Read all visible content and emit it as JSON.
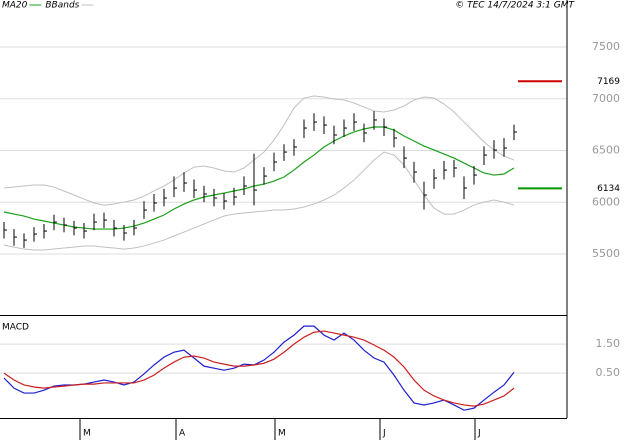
{
  "source": "© TEC 14/7/2024 3:1 GMT",
  "chart_data": [
    {
      "type": "ohlc",
      "high": [
        5810,
        5740,
        5700,
        5760,
        5790,
        5880,
        5850,
        5820,
        5800,
        5890,
        5900,
        5830,
        5780,
        5830,
        6010,
        6080,
        6130,
        6250,
        6290,
        6220,
        6160,
        6130,
        6090,
        6140,
        6250,
        6470,
        6340,
        6480,
        6560,
        6610,
        6800,
        6860,
        6830,
        6740,
        6800,
        6860,
        6760,
        6880,
        6810,
        6710,
        6540,
        6390,
        6200,
        6320,
        6400,
        6410,
        6250,
        6350,
        6540,
        6600,
        6620,
        6750
      ],
      "low": [
        5650,
        5580,
        5560,
        5620,
        5650,
        5730,
        5710,
        5680,
        5650,
        5730,
        5750,
        5670,
        5630,
        5680,
        5840,
        5910,
        5960,
        6050,
        6100,
        6040,
        6000,
        5960,
        5930,
        5970,
        6070,
        5970,
        6170,
        6300,
        6400,
        6450,
        6620,
        6690,
        6660,
        6560,
        6630,
        6690,
        6580,
        6700,
        6640,
        6530,
        6330,
        6190,
        5930,
        6130,
        6220,
        6240,
        6030,
        6170,
        6360,
        6420,
        6440,
        6600
      ],
      "close": [
        5732,
        5664,
        5635,
        5693,
        5722,
        5809,
        5780,
        5751,
        5722,
        5809,
        5828,
        5751,
        5703,
        5751,
        5925,
        5993,
        6041,
        6137,
        6186,
        6118,
        6080,
        6041,
        6012,
        6051,
        6157,
        6118,
        6253,
        6389,
        6485,
        6534,
        6717,
        6775,
        6746,
        6650,
        6717,
        6775,
        6669,
        6795,
        6727,
        6621,
        6427,
        6292,
        6070,
        6234,
        6311,
        6331,
        6138,
        6263,
        6456,
        6505,
        6524,
        6679
      ],
      "bar_color": "#000000",
      "series": [
        {
          "name": "MA20",
          "color": "#1aa01a",
          "values": [
            5906,
            5886,
            5867,
            5838,
            5819,
            5799,
            5780,
            5761,
            5751,
            5741,
            5741,
            5741,
            5751,
            5770,
            5799,
            5838,
            5877,
            5935,
            5983,
            6022,
            6051,
            6070,
            6089,
            6109,
            6128,
            6157,
            6176,
            6205,
            6244,
            6311,
            6389,
            6456,
            6534,
            6592,
            6640,
            6679,
            6708,
            6727,
            6727,
            6698,
            6640,
            6592,
            6543,
            6505,
            6466,
            6427,
            6379,
            6331,
            6283,
            6263,
            6273,
            6331
          ]
        },
        {
          "name": "BBands",
          "color": "#c0c0c0",
          "upper": [
            6138,
            6147,
            6157,
            6167,
            6167,
            6147,
            6109,
            6070,
            6031,
            5993,
            5973,
            5983,
            6002,
            6022,
            6060,
            6109,
            6157,
            6215,
            6282,
            6340,
            6350,
            6331,
            6302,
            6292,
            6331,
            6408,
            6485,
            6601,
            6746,
            6911,
            7007,
            7026,
            7017,
            6997,
            6988,
            6959,
            6920,
            6882,
            6872,
            6891,
            6930,
            6988,
            7017,
            7007,
            6949,
            6872,
            6775,
            6679,
            6582,
            6505,
            6447,
            6408
          ],
          "lower": [
            5587,
            5567,
            5548,
            5539,
            5539,
            5548,
            5558,
            5567,
            5577,
            5577,
            5567,
            5558,
            5548,
            5558,
            5577,
            5606,
            5635,
            5674,
            5712,
            5751,
            5790,
            5828,
            5867,
            5886,
            5896,
            5906,
            5915,
            5925,
            5925,
            5935,
            5954,
            5983,
            6022,
            6070,
            6138,
            6215,
            6311,
            6408,
            6485,
            6456,
            6360,
            6215,
            6070,
            5944,
            5886,
            5886,
            5925,
            5973,
            6002,
            6022,
            6002,
            5973
          ]
        }
      ],
      "levels": [
        {
          "value": 7169,
          "color": "#cc0000"
        },
        {
          "value": 6134,
          "color": "#009900"
        }
      ],
      "ylim": [
        4911,
        7954
      ],
      "yticks": [
        5500,
        6000,
        6500,
        7000,
        7500
      ],
      "grid": true
    },
    {
      "type": "line",
      "title": "MACD",
      "series": [
        {
          "color": "#1f1fd0",
          "values": [
            0.33,
            -0.02,
            -0.19,
            -0.19,
            -0.09,
            0.05,
            0.09,
            0.09,
            0.12,
            0.19,
            0.26,
            0.19,
            0.09,
            0.19,
            0.47,
            0.78,
            1.05,
            1.22,
            1.29,
            1.02,
            0.74,
            0.67,
            0.6,
            0.67,
            0.81,
            0.78,
            0.95,
            1.22,
            1.57,
            1.81,
            2.12,
            2.12,
            1.81,
            1.64,
            1.88,
            1.64,
            1.29,
            1.02,
            0.88,
            0.43,
            -0.09,
            -0.53,
            -0.6,
            -0.53,
            -0.43,
            -0.6,
            -0.78,
            -0.71,
            -0.43,
            -0.16,
            0.09,
            0.53
          ]
        },
        {
          "color": "#cc1f1f",
          "values": [
            0.5,
            0.26,
            0.09,
            0.02,
            -0.02,
            0.02,
            0.05,
            0.09,
            0.12,
            0.12,
            0.16,
            0.16,
            0.16,
            0.16,
            0.26,
            0.43,
            0.67,
            0.88,
            1.05,
            1.09,
            1.02,
            0.88,
            0.81,
            0.74,
            0.74,
            0.78,
            0.84,
            0.98,
            1.22,
            1.5,
            1.74,
            1.91,
            1.95,
            1.88,
            1.81,
            1.74,
            1.64,
            1.47,
            1.29,
            1.05,
            0.71,
            0.26,
            -0.09,
            -0.29,
            -0.43,
            -0.53,
            -0.6,
            -0.64,
            -0.57,
            -0.43,
            -0.29,
            -0.02
          ]
        }
      ],
      "ylim": [
        -1.05,
        2.47
      ],
      "yticks": [
        {
          "value": 0.5,
          "label": "0.50"
        },
        {
          "value": 1.5,
          "label": "1.50"
        }
      ],
      "xticks": [
        {
          "value": 7.6,
          "label": "M"
        },
        {
          "value": 17.2,
          "label": "A"
        },
        {
          "value": 27.1,
          "label": "M"
        },
        {
          "value": 37.6,
          "label": "J"
        },
        {
          "value": 47.1,
          "label": "J"
        }
      ],
      "grid": true
    }
  ]
}
